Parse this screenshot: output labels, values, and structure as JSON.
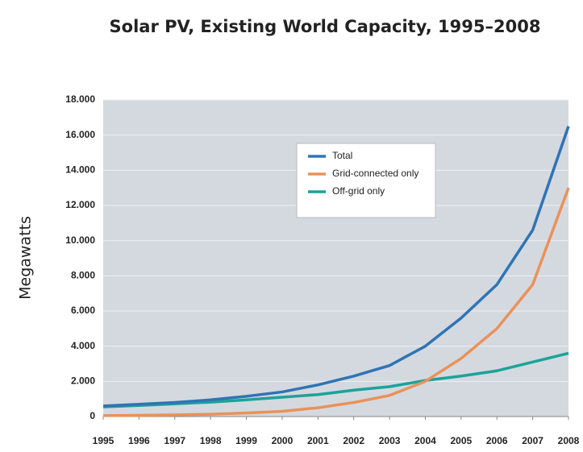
{
  "chart_data": {
    "type": "line",
    "title": "Solar PV, Existing World Capacity, 1995–2008",
    "y_label": "Megawatts",
    "x": [
      1995,
      1996,
      1997,
      1998,
      1999,
      2000,
      2001,
      2002,
      2003,
      2004,
      2005,
      2006,
      2007,
      2008
    ],
    "xlim": [
      1995,
      2008
    ],
    "xticks": [
      1995,
      1996,
      1997,
      1998,
      1999,
      2000,
      2001,
      2002,
      2003,
      2004,
      2005,
      2006,
      2007,
      2008
    ],
    "ylim": [
      0,
      18000
    ],
    "yticks": [
      0,
      {
        "value": 2000,
        "label": "2.000"
      },
      {
        "value": 4000,
        "label": "4.000"
      },
      {
        "value": 6000,
        "label": "6.000"
      },
      {
        "value": 8000,
        "label": "8.000"
      },
      {
        "value": 10000,
        "label": "10.000"
      },
      {
        "value": 12000,
        "label": "12.000"
      },
      {
        "value": 14000,
        "label": "14.000"
      },
      {
        "value": 16000,
        "label": "16.000"
      },
      {
        "value": 18000,
        "label": "18.000"
      }
    ],
    "grid": true,
    "legend_position": "top-center",
    "series": [
      {
        "name": "Total",
        "color": "#2f74b5",
        "values": [
          600,
          700,
          800,
          950,
          1150,
          1400,
          1800,
          2300,
          2900,
          4000,
          5600,
          7500,
          10600,
          16500
        ]
      },
      {
        "name": "Grid-connected only",
        "color": "#e9925a",
        "values": [
          50,
          70,
          100,
          130,
          200,
          300,
          500,
          800,
          1200,
          2000,
          3300,
          5000,
          7500,
          13000
        ]
      },
      {
        "name": "Off-grid only",
        "color": "#1aa39a",
        "values": [
          550,
          630,
          720,
          820,
          950,
          1100,
          1250,
          1500,
          1700,
          2050,
          2300,
          2600,
          3100,
          3600
        ]
      }
    ]
  }
}
